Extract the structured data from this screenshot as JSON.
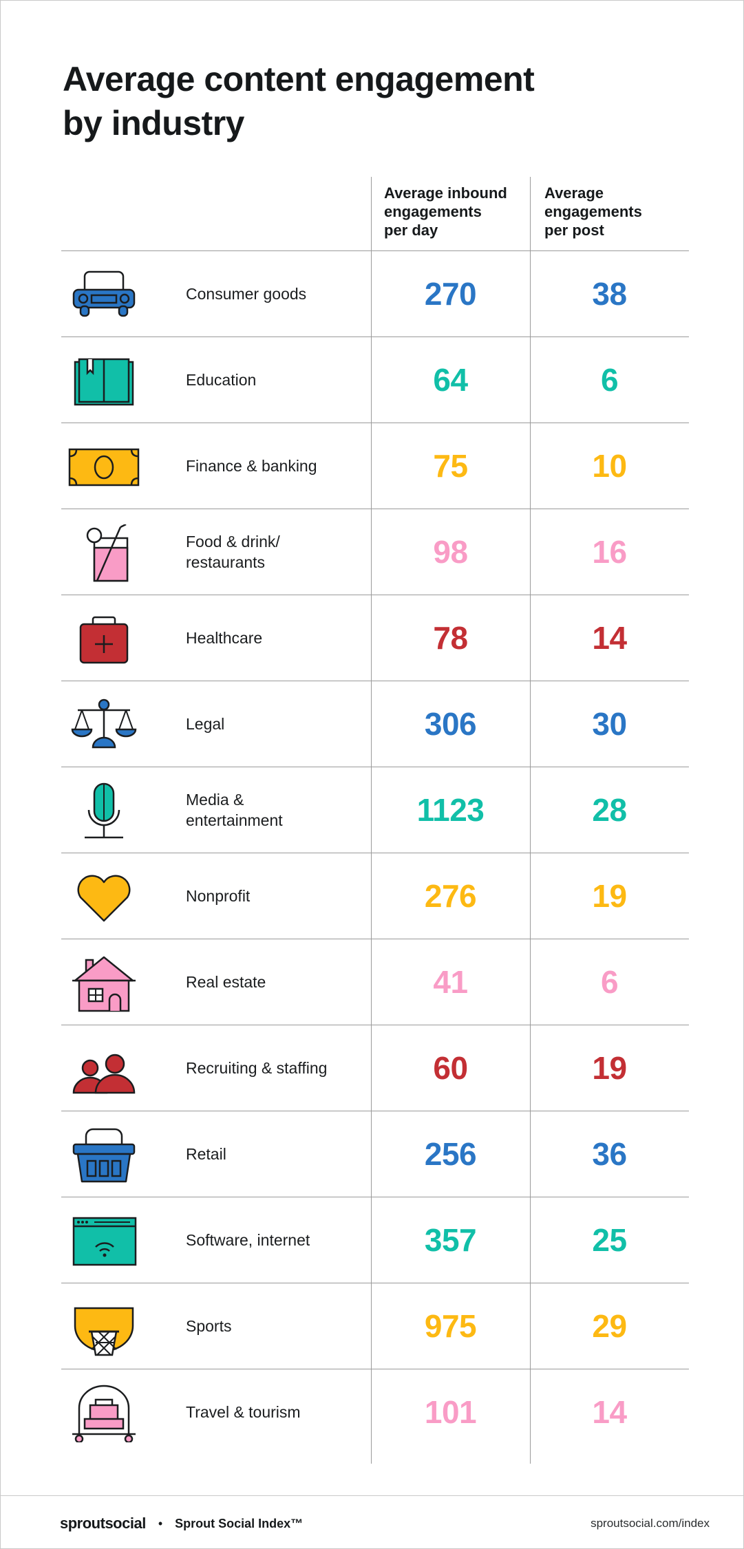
{
  "title": "Average content engagement\nby industry",
  "colors": {
    "blue": "#2a76c5",
    "teal": "#11bfa8",
    "yellow": "#fdb913",
    "pink": "#f99cc6",
    "red": "#c32f34"
  },
  "chart_data": {
    "type": "table",
    "columns": [
      "Average inbound\nengagements\nper day",
      "Average\nengagements\nper post"
    ],
    "rows": [
      {
        "industry": "Consumer goods",
        "icon": "car-icon",
        "color": "#2a76c5",
        "per_day": 270,
        "per_post": 38
      },
      {
        "industry": "Education",
        "icon": "book-icon",
        "color": "#11bfa8",
        "per_day": 64,
        "per_post": 6
      },
      {
        "industry": "Finance & banking",
        "icon": "banknote-icon",
        "color": "#fdb913",
        "per_day": 75,
        "per_post": 10
      },
      {
        "industry": "Food & drink/\nrestaurants",
        "icon": "drink-icon",
        "color": "#f99cc6",
        "per_day": 98,
        "per_post": 16
      },
      {
        "industry": "Healthcare",
        "icon": "medical-kit-icon",
        "color": "#c32f34",
        "per_day": 78,
        "per_post": 14
      },
      {
        "industry": "Legal",
        "icon": "scales-icon",
        "color": "#2a76c5",
        "per_day": 306,
        "per_post": 30
      },
      {
        "industry": "Media &\nentertainment",
        "icon": "microphone-icon",
        "color": "#11bfa8",
        "per_day": 1123,
        "per_post": 28
      },
      {
        "industry": "Nonprofit",
        "icon": "heart-icon",
        "color": "#fdb913",
        "per_day": 276,
        "per_post": 19
      },
      {
        "industry": "Real estate",
        "icon": "house-icon",
        "color": "#f99cc6",
        "per_day": 41,
        "per_post": 6
      },
      {
        "industry": "Recruiting & staffing",
        "icon": "people-icon",
        "color": "#c32f34",
        "per_day": 60,
        "per_post": 19
      },
      {
        "industry": "Retail",
        "icon": "basket-icon",
        "color": "#2a76c5",
        "per_day": 256,
        "per_post": 36
      },
      {
        "industry": "Software, internet",
        "icon": "browser-wifi-icon",
        "color": "#11bfa8",
        "per_day": 357,
        "per_post": 25
      },
      {
        "industry": "Sports",
        "icon": "basketball-hoop-icon",
        "color": "#fdb913",
        "per_day": 975,
        "per_post": 29
      },
      {
        "industry": "Travel & tourism",
        "icon": "luggage-cart-icon",
        "color": "#f99cc6",
        "per_day": 101,
        "per_post": 14
      }
    ]
  },
  "footer": {
    "brand": "sproutsocial",
    "separator": "•",
    "index": "Sprout Social Index™",
    "url": "sproutsocial.com/index"
  }
}
